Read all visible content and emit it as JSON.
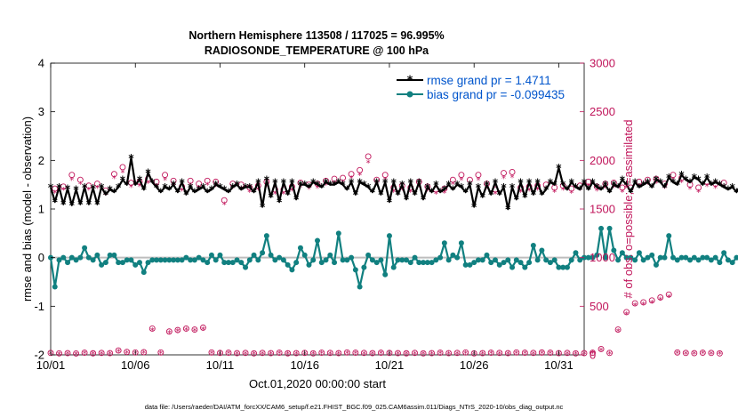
{
  "chart_data": {
    "type": "line",
    "title_line1": "Northern Hemisphere 113508 / 117025 = 96.995%",
    "title_line2": "RADIOSONDE_TEMPERATURE @ 100 hPa",
    "xlabel": "Oct.01,2020 00:00:00 start",
    "ylabel_left": "rmse and bias (model - observation)",
    "ylabel_right": "# of obs: o=possible; *=assimilated",
    "footnote": "data file: /Users/raeder/DAI/ATM_forcXX/CAM6_setup/f.e21.FHIST_BGC.f09_025.CAM6assim.011/Diags_NTrS_2020-10/obs_diag_output.nc",
    "xlim": [
      1,
      32.5
    ],
    "ylim_left": [
      -2,
      4
    ],
    "ylim_right": [
      0,
      3000
    ],
    "x_ticks": [
      1,
      6,
      11,
      16,
      21,
      26,
      31
    ],
    "x_tick_labels": [
      "10/01",
      "10/06",
      "10/11",
      "10/16",
      "10/21",
      "10/26",
      "10/31"
    ],
    "y_ticks_left": [
      -2,
      -1,
      0,
      1,
      2,
      3,
      4
    ],
    "y_tick_labels_left": [
      "-2",
      "-1",
      "0",
      "1",
      "2",
      "3",
      "4"
    ],
    "y_ticks_right": [
      0,
      500,
      1000,
      1500,
      2000,
      2500,
      3000
    ],
    "y_tick_labels_right": [
      "0",
      "500",
      "1000",
      "1500",
      "2000",
      "2500",
      "3000"
    ],
    "x_start": 1,
    "x_step": 0.25,
    "series": [
      {
        "name": "rmse grand pr = 1.4711",
        "axis": "left",
        "color": "#000000",
        "marker": "asterisk",
        "values": [
          1.45,
          1.15,
          1.45,
          1.1,
          1.42,
          1.08,
          1.4,
          1.1,
          1.45,
          1.1,
          1.43,
          1.1,
          1.45,
          1.3,
          1.4,
          1.35,
          1.45,
          1.6,
          1.5,
          2.05,
          1.5,
          1.6,
          1.4,
          1.75,
          1.55,
          1.45,
          1.35,
          1.45,
          1.4,
          1.5,
          1.35,
          1.55,
          1.3,
          1.45,
          1.35,
          1.4,
          1.45,
          1.35,
          1.4,
          1.5,
          1.45,
          1.4,
          1.35,
          1.45,
          1.5,
          1.4,
          1.45,
          1.45,
          1.35,
          1.55,
          1.05,
          1.6,
          1.25,
          1.55,
          1.15,
          1.55,
          1.3,
          1.55,
          1.2,
          1.5,
          1.5,
          1.45,
          1.55,
          1.5,
          1.45,
          1.55,
          1.5,
          1.5,
          1.55,
          1.5,
          1.4,
          1.55,
          1.3,
          1.55,
          1.5,
          1.45,
          1.35,
          1.55,
          1.3,
          1.55,
          1.15,
          1.55,
          1.3,
          1.5,
          1.2,
          1.55,
          1.3,
          1.55,
          1.2,
          1.45,
          1.35,
          1.5,
          1.35,
          1.4,
          1.5,
          1.4,
          1.5,
          1.45,
          1.35,
          1.5,
          1.05,
          1.45,
          1.25,
          1.5,
          1.3,
          1.55,
          1.3,
          1.45,
          1.0,
          1.45,
          1.2,
          1.55,
          1.25,
          1.55,
          1.3,
          1.55,
          1.3,
          1.4,
          1.55,
          1.5,
          1.85,
          1.5,
          1.4,
          1.55,
          1.45,
          1.4,
          1.55,
          1.4,
          1.55,
          1.45,
          1.4,
          1.5,
          1.35,
          1.5,
          1.45,
          1.6,
          1.5,
          1.35,
          1.55,
          1.45,
          1.5,
          1.55,
          1.45,
          1.6,
          1.55,
          1.45,
          1.65,
          1.55,
          1.5,
          1.7,
          1.6,
          1.55,
          1.65,
          1.6,
          1.5,
          1.65,
          1.5,
          1.55,
          1.5,
          1.45,
          1.4,
          1.45,
          1.35,
          1.5,
          1.8,
          1.45,
          1.55,
          1.5,
          1.5
        ]
      },
      {
        "name": "bias grand pr = -0.099435",
        "axis": "left",
        "color": "#118080",
        "marker": "dot",
        "values": [
          0.0,
          -0.6,
          -0.05,
          0.0,
          -0.1,
          0.0,
          -0.05,
          0.0,
          0.2,
          0.0,
          -0.05,
          0.05,
          -0.15,
          -0.1,
          0.05,
          0.05,
          -0.1,
          -0.1,
          -0.05,
          -0.05,
          -0.15,
          -0.1,
          -0.3,
          -0.1,
          -0.05,
          -0.05,
          -0.05,
          -0.05,
          -0.05,
          -0.05,
          -0.05,
          -0.05,
          0.0,
          -0.05,
          -0.05,
          0.0,
          -0.05,
          -0.1,
          0.05,
          -0.05,
          0.05,
          -0.1,
          -0.1,
          -0.1,
          -0.05,
          -0.1,
          -0.2,
          -0.05,
          0.05,
          -0.05,
          0.1,
          0.45,
          0.05,
          -0.05,
          0.0,
          -0.05,
          -0.15,
          -0.25,
          -0.1,
          0.2,
          0.05,
          -0.15,
          -0.05,
          0.35,
          -0.1,
          -0.05,
          0.05,
          -0.1,
          0.5,
          -0.05,
          -0.05,
          0.0,
          -0.25,
          -0.6,
          -0.2,
          0.05,
          -0.05,
          -0.1,
          -0.05,
          -0.35,
          0.45,
          -0.2,
          -0.05,
          -0.05,
          -0.05,
          -0.1,
          0.0,
          -0.1,
          -0.1,
          -0.1,
          -0.1,
          -0.05,
          0.0,
          0.3,
          -0.05,
          0.05,
          0.0,
          0.3,
          -0.15,
          -0.15,
          -0.1,
          -0.05,
          -0.05,
          0.05,
          -0.1,
          -0.05,
          -0.15,
          -0.1,
          -0.05,
          -0.2,
          -0.05,
          -0.1,
          -0.2,
          -0.1,
          0.25,
          -0.05,
          0.15,
          -0.05,
          -0.1,
          -0.05,
          -0.2,
          -0.2,
          -0.2,
          -0.05,
          0.1,
          -0.05,
          0.0,
          0.0,
          0.0,
          0.05,
          0.6,
          0.0,
          0.6,
          0.15,
          -0.05,
          0.1,
          0.0,
          0.0,
          -0.05,
          0.1,
          -0.05,
          0.0,
          0.05,
          -0.15,
          0.0,
          0.0,
          0.45,
          0.0,
          -0.05,
          0.0,
          0.0,
          -0.05,
          0.0,
          -0.05,
          0.0,
          0.0,
          -0.05,
          0.0,
          -0.1,
          0.1,
          -0.05,
          -0.1,
          0.0,
          0.05,
          -0.05,
          0.1,
          -0.05,
          -0.15,
          -0.05,
          0.05,
          0.2
        ]
      }
    ],
    "obs_possible": {
      "axis": "right",
      "color": "#c0145a",
      "marker": "circle",
      "values": [
        20,
        1710,
        15,
        1730,
        18,
        1850,
        14,
        1800,
        22,
        1740,
        16,
        1760,
        20,
        1690,
        18,
        1860,
        45,
        1930,
        30,
        1770,
        25,
        1780,
        28,
        1810,
        270,
        1780,
        25,
        1850,
        240,
        1790,
        255,
        1730,
        270,
        1790,
        260,
        1760,
        280,
        1790,
        25,
        1780,
        20,
        1590,
        22,
        1760,
        18,
        1750,
        20,
        1720,
        15,
        1740,
        20,
        1780,
        18,
        1700,
        22,
        1700,
        16,
        1730,
        18,
        1770,
        20,
        1750,
        15,
        1760,
        22,
        1790,
        20,
        1810,
        18,
        1820,
        25,
        1860,
        22,
        1900,
        20,
        2040,
        18,
        1800,
        22,
        1850,
        20,
        1720,
        18,
        1740,
        16,
        1720,
        20,
        1780,
        15,
        1730,
        18,
        1700,
        22,
        1710,
        18,
        1800,
        20,
        1850,
        25,
        1800,
        15,
        1850,
        18,
        1760,
        22,
        1700,
        20,
        1870,
        18,
        1880,
        25,
        1720,
        22,
        1730,
        20,
        1740,
        24,
        1750,
        22,
        1720,
        18,
        1740,
        20,
        1710,
        15,
        1740,
        18,
        1780,
        22,
        1730,
        60,
        1760,
        20,
        1770,
        260,
        1720,
        440,
        1720,
        530,
        1780,
        540,
        1800,
        560,
        1810,
        590,
        1760,
        620,
        1850,
        25,
        1820,
        20,
        1750,
        18,
        1720,
        22,
        1780,
        20,
        1760,
        15,
        1770
      ]
    },
    "obs_assimilated": {
      "axis": "right",
      "color": "#c0145a",
      "marker": "asterisk",
      "values": [
        15,
        1670,
        10,
        1700,
        14,
        1800,
        10,
        1760,
        18,
        1700,
        12,
        1720,
        15,
        1650,
        14,
        1820,
        38,
        1880,
        25,
        1730,
        20,
        1740,
        22,
        1770,
        255,
        1740,
        20,
        1800,
        230,
        1750,
        245,
        1690,
        260,
        1750,
        250,
        1720,
        265,
        1750,
        20,
        1740,
        15,
        1550,
        18,
        1720,
        14,
        1710,
        15,
        1680,
        12,
        1700,
        15,
        1740,
        14,
        1660,
        18,
        1660,
        12,
        1690,
        14,
        1730,
        15,
        1710,
        12,
        1720,
        18,
        1750,
        15,
        1770,
        14,
        1780,
        20,
        1820,
        18,
        1850,
        15,
        1980,
        14,
        1760,
        18,
        1800,
        15,
        1680,
        14,
        1700,
        12,
        1680,
        15,
        1740,
        12,
        1690,
        14,
        1660,
        18,
        1670,
        14,
        1760,
        15,
        1800,
        20,
        1760,
        12,
        1800,
        14,
        1720,
        18,
        1660,
        15,
        1820,
        14,
        1830,
        20,
        1680,
        18,
        1690,
        15,
        1700,
        20,
        1710,
        18,
        1680,
        14,
        1700,
        15,
        1670,
        12,
        1700,
        14,
        1740,
        18,
        1690,
        50,
        1720,
        15,
        1730,
        245,
        1680,
        420,
        1680,
        510,
        1740,
        520,
        1760,
        540,
        1770,
        570,
        1720,
        600,
        1800,
        20,
        1780,
        15,
        1710,
        14,
        1680,
        18,
        1740,
        15,
        1720,
        12,
        1730
      ]
    }
  }
}
